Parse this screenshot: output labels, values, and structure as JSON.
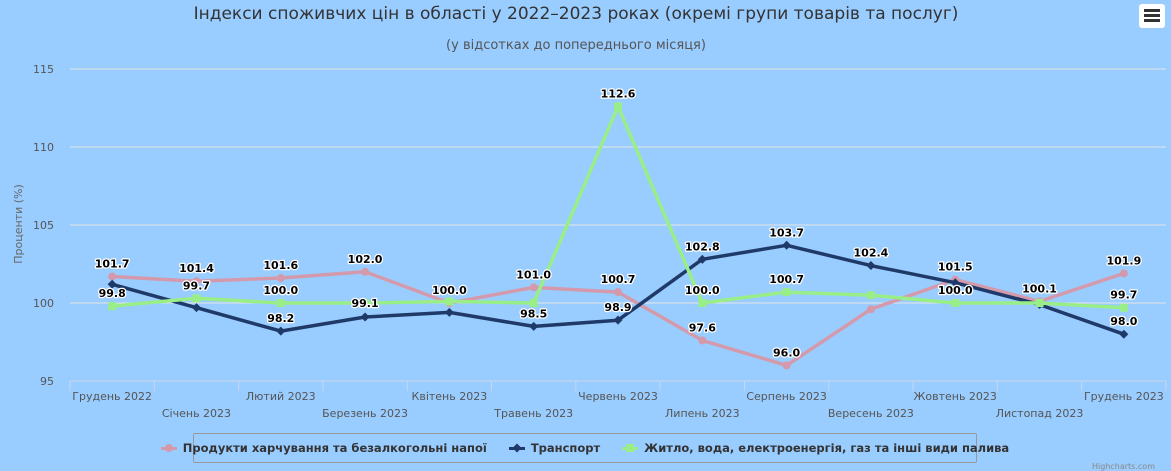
{
  "chart_data": {
    "type": "line",
    "title": "Індекси споживчих цін в області у 2022–2023 роках (окремі групи товарів та послуг)",
    "subtitle": "(у відсотках до попереднього місяця)",
    "ylabel": "Проценти (%)",
    "xlabel": "",
    "ylim": [
      95,
      115
    ],
    "yticks": [
      95,
      100,
      105,
      110,
      115
    ],
    "grid": true,
    "legend_position": "bottom",
    "categories": [
      "Грудень 2022",
      "Січень 2023",
      "Лютий 2023",
      "Березень 2023",
      "Квітень 2023",
      "Травень 2023",
      "Червень 2023",
      "Липень 2023",
      "Серпень 2023",
      "Вересень 2023",
      "Жовтень 2023",
      "Листопад 2023",
      "Грудень 2023"
    ],
    "series": [
      {
        "name": "Продукти харчування та безалкогольні напої",
        "color": "#d49aac",
        "marker": "circle",
        "values": [
          101.7,
          101.4,
          101.6,
          102.0,
          100.0,
          101.0,
          100.7,
          97.6,
          96.0,
          99.6,
          101.5,
          100.1,
          101.9
        ],
        "labels": [
          true,
          true,
          true,
          true,
          true,
          true,
          true,
          true,
          true,
          false,
          true,
          true,
          true
        ]
      },
      {
        "name": "Транспорт",
        "color": "#1f3a68",
        "marker": "diamond",
        "values": [
          101.2,
          99.7,
          98.2,
          99.1,
          99.4,
          98.5,
          98.9,
          102.8,
          103.7,
          102.4,
          101.3,
          99.9,
          98.0
        ],
        "labels": [
          false,
          false,
          true,
          false,
          false,
          true,
          true,
          true,
          true,
          true,
          false,
          false,
          true
        ]
      },
      {
        "name": "Житло, вода, електроенергія, газ та інші види палива",
        "color": "#99ee88",
        "marker": "square",
        "values": [
          99.8,
          100.3,
          100.0,
          100.0,
          100.1,
          100.0,
          112.6,
          100.0,
          100.7,
          100.5,
          100.0,
          100.0,
          99.7
        ],
        "labels": [
          true,
          false,
          true,
          false,
          false,
          false,
          true,
          true,
          true,
          false,
          true,
          false,
          true
        ]
      }
    ],
    "extra_labels": [
      "99.7",
      "99.1"
    ]
  },
  "menu_icon": "hamburger-menu-icon",
  "credit": "Highcharts.com"
}
